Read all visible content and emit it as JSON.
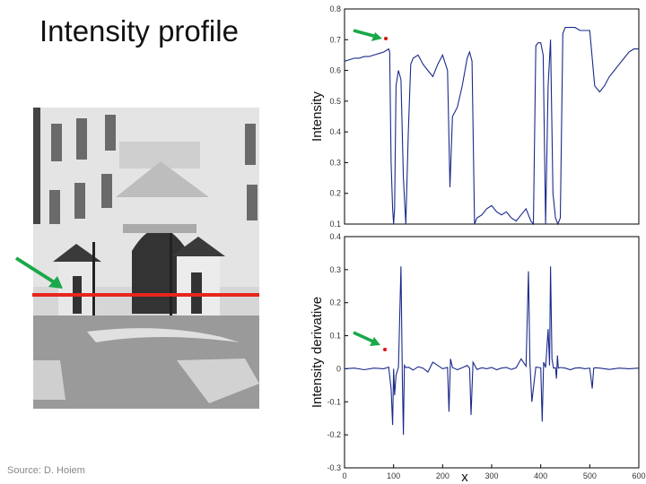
{
  "title": "Intensity profile",
  "source": "Source: D. Hoiem",
  "colors": {
    "line": "#1a2a8a",
    "red_line": "#e8251c",
    "arrow": "#1aa84a",
    "marker": "#d11"
  },
  "chart_data": [
    {
      "type": "line",
      "ylabel": "Intensity",
      "xlim": [
        0,
        600
      ],
      "ylim": [
        0.1,
        0.8
      ],
      "y_ticks": [
        "0.8",
        "0.7",
        "0.6",
        "0.5",
        "0.4",
        "0.3",
        "0.2",
        "0.1"
      ],
      "series": [
        {
          "x": [
            0,
            10,
            20,
            30,
            40,
            50,
            60,
            70,
            80,
            90,
            92,
            95,
            98,
            100,
            102,
            105,
            110,
            115,
            120,
            125,
            130,
            135,
            140,
            150,
            160,
            170,
            180,
            190,
            200,
            210,
            215,
            220,
            230,
            240,
            250,
            255,
            260,
            265,
            270,
            280,
            290,
            300,
            310,
            320,
            330,
            340,
            350,
            360,
            370,
            380,
            385,
            390,
            395,
            400,
            405,
            410,
            415,
            420,
            425,
            430,
            435,
            440,
            445,
            450,
            460,
            470,
            480,
            490,
            500,
            510,
            520,
            530,
            540,
            550,
            560,
            570,
            580,
            590,
            600
          ],
          "y": [
            0.63,
            0.635,
            0.64,
            0.64,
            0.645,
            0.645,
            0.65,
            0.655,
            0.66,
            0.67,
            0.66,
            0.3,
            0.15,
            0.1,
            0.15,
            0.55,
            0.6,
            0.57,
            0.25,
            0.1,
            0.4,
            0.62,
            0.64,
            0.65,
            0.62,
            0.6,
            0.58,
            0.62,
            0.65,
            0.6,
            0.22,
            0.45,
            0.48,
            0.55,
            0.64,
            0.66,
            0.63,
            0.1,
            0.12,
            0.13,
            0.15,
            0.16,
            0.14,
            0.13,
            0.14,
            0.12,
            0.11,
            0.13,
            0.15,
            0.11,
            0.1,
            0.68,
            0.69,
            0.69,
            0.65,
            0.1,
            0.55,
            0.7,
            0.2,
            0.12,
            0.1,
            0.12,
            0.72,
            0.74,
            0.74,
            0.74,
            0.73,
            0.73,
            0.73,
            0.55,
            0.53,
            0.55,
            0.58,
            0.6,
            0.62,
            0.64,
            0.66,
            0.67,
            0.67
          ]
        }
      ]
    },
    {
      "type": "line",
      "ylabel": "Intensity derivative",
      "xlabel": "x",
      "xlim": [
        0,
        600
      ],
      "ylim": [
        -0.3,
        0.4
      ],
      "x_ticks": [
        "0",
        "100",
        "200",
        "300",
        "400",
        "500",
        "600"
      ],
      "y_ticks": [
        "0.4",
        "0.3",
        "0.2",
        "0.1",
        "0",
        "-0.1",
        "-0.2",
        "-0.3"
      ],
      "series": [
        {
          "x": [
            0,
            20,
            40,
            60,
            80,
            90,
            95,
            98,
            100,
            102,
            105,
            110,
            115,
            118,
            120,
            122,
            125,
            130,
            140,
            150,
            160,
            170,
            180,
            190,
            200,
            210,
            213,
            216,
            220,
            230,
            240,
            250,
            255,
            258,
            262,
            270,
            280,
            290,
            300,
            310,
            320,
            330,
            340,
            350,
            360,
            370,
            375,
            378,
            382,
            390,
            400,
            403,
            406,
            410,
            415,
            418,
            420,
            423,
            426,
            430,
            432,
            434,
            436,
            440,
            450,
            460,
            470,
            480,
            490,
            500,
            505,
            508,
            512,
            520,
            540,
            560,
            580,
            600
          ],
          "y": [
            0,
            0.002,
            -0.003,
            0.002,
            0,
            0.005,
            -0.06,
            -0.17,
            0,
            -0.08,
            -0.02,
            0.005,
            0.31,
            -0.04,
            -0.2,
            0.01,
            0.003,
            0.005,
            -0.004,
            0.006,
            0.002,
            -0.01,
            0.02,
            0.01,
            0,
            0.004,
            -0.13,
            0.03,
            0.004,
            -0.003,
            0.003,
            0.01,
            0.002,
            -0.14,
            0.02,
            -0.002,
            0.003,
            0,
            0.004,
            -0.003,
            0.002,
            0.004,
            -0.002,
            0.003,
            0.03,
            0.008,
            0.295,
            0.02,
            -0.1,
            0.005,
            0.003,
            -0.16,
            0.02,
            0.004,
            0.12,
            0.01,
            0.31,
            0.03,
            0.002,
            0.003,
            -0.03,
            0.04,
            0.002,
            0.004,
            0.002,
            -0.003,
            0.002,
            0.003,
            0,
            0.002,
            -0.06,
            0.002,
            0.003,
            0.002,
            -0.002,
            0.002,
            0,
            0.002
          ]
        }
      ]
    }
  ]
}
